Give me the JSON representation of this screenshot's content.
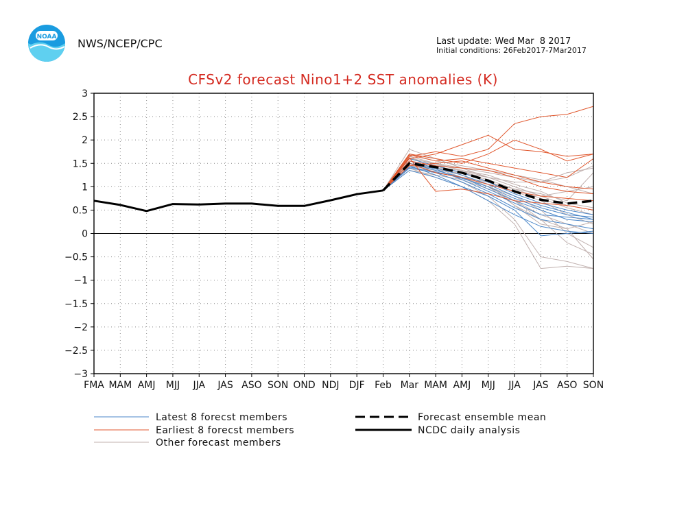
{
  "header": {
    "org": "NWS/NCEP/CPC",
    "logo_text": "NOAA",
    "last_update": "Last update: Wed Mar  8 2017",
    "initial_conditions": "Initial conditions: 26Feb2017-7Mar2017"
  },
  "colors": {
    "latest": "#4a86c8",
    "earliest": "#e0562c",
    "other": "#c0b0ae",
    "title": "#d42a20",
    "mean": "#000000",
    "analysis": "#000000"
  },
  "chart_data": {
    "type": "line",
    "title": "CFSv2 forecast Nino1+2 SST anomalies (K)",
    "xlabel": "",
    "ylabel": "",
    "categories": [
      "FMA",
      "MAM",
      "AMJ",
      "MJJ",
      "JJA",
      "JAS",
      "ASO",
      "SON",
      "OND",
      "NDJ",
      "DJF",
      "Feb",
      "Mar",
      "MAM",
      "AMJ",
      "MJJ",
      "JJA",
      "JAS",
      "ASO",
      "SON"
    ],
    "ylim": [
      -3,
      3
    ],
    "yticks": [
      3,
      2.5,
      2,
      1.5,
      1,
      0.5,
      0,
      -0.5,
      -1,
      -1.5,
      -2,
      -2.5,
      -3
    ],
    "ytick_labels": [
      "3",
      "2.5",
      "2",
      "1.5",
      "1",
      "0.5",
      "0",
      "−0.5",
      "−1",
      "−1.5",
      "−2",
      "−2.5",
      "−3"
    ],
    "grid": true,
    "analysis": {
      "name": "NCDC daily analysis",
      "x": [
        0,
        1,
        2,
        3,
        4,
        5,
        6,
        7,
        8,
        9,
        10,
        11
      ],
      "values": [
        0.7,
        0.61,
        0.48,
        0.63,
        0.62,
        0.64,
        0.64,
        0.59,
        0.59,
        0.71,
        0.84,
        0.92
      ]
    },
    "mean": {
      "name": "Forecast ensemble mean",
      "x": [
        11,
        12,
        13,
        14,
        15,
        16,
        17,
        18,
        19
      ],
      "values": [
        0.92,
        1.5,
        1.42,
        1.3,
        1.13,
        0.9,
        0.72,
        0.64,
        0.7
      ]
    },
    "members_x": [
      11,
      12,
      13,
      14,
      15,
      16,
      17,
      18,
      19
    ],
    "latest_members": [
      [
        0.92,
        1.4,
        1.3,
        1.1,
        0.85,
        0.55,
        0.3,
        0.2,
        0.1
      ],
      [
        0.92,
        1.5,
        1.35,
        1.2,
        0.95,
        0.7,
        0.5,
        0.3,
        0.25
      ],
      [
        0.92,
        1.45,
        1.25,
        1.0,
        0.7,
        0.4,
        0.15,
        0.05,
        0.0
      ],
      [
        0.92,
        1.55,
        1.4,
        1.25,
        1.05,
        0.8,
        0.6,
        0.45,
        0.3
      ],
      [
        0.92,
        1.35,
        1.2,
        1.0,
        0.8,
        0.5,
        -0.05,
        0.0,
        0.05
      ],
      [
        0.92,
        1.6,
        1.45,
        1.3,
        1.1,
        0.85,
        0.65,
        0.5,
        0.4
      ],
      [
        0.92,
        1.5,
        1.38,
        1.15,
        0.9,
        0.65,
        0.4,
        0.35,
        0.3
      ],
      [
        0.92,
        1.42,
        1.32,
        1.18,
        1.0,
        0.75,
        0.55,
        0.4,
        0.35
      ]
    ],
    "earliest_members": [
      [
        0.92,
        1.6,
        1.7,
        1.9,
        2.1,
        1.8,
        1.75,
        1.65,
        1.7
      ],
      [
        0.92,
        1.7,
        1.6,
        1.5,
        1.7,
        2.0,
        1.8,
        1.55,
        1.7
      ],
      [
        0.92,
        1.65,
        1.75,
        1.65,
        1.8,
        2.35,
        2.5,
        2.55,
        2.72
      ],
      [
        0.92,
        1.55,
        1.45,
        1.4,
        1.35,
        1.2,
        1.0,
        0.9,
        0.85
      ],
      [
        0.92,
        1.5,
        1.3,
        1.2,
        1.05,
        0.9,
        0.8,
        0.75,
        0.7
      ],
      [
        0.92,
        1.62,
        0.9,
        0.95,
        0.85,
        0.7,
        0.65,
        0.6,
        0.5
      ],
      [
        0.92,
        1.68,
        1.55,
        1.6,
        1.5,
        1.4,
        1.3,
        1.2,
        1.6
      ],
      [
        0.92,
        1.45,
        1.5,
        1.55,
        1.4,
        1.25,
        1.1,
        1.0,
        0.95
      ]
    ],
    "other_members": [
      [
        0.92,
        1.8,
        1.6,
        1.4,
        1.2,
        1.0,
        0.8,
        0.6,
        0.5
      ],
      [
        0.92,
        1.5,
        1.3,
        1.1,
        0.8,
        0.3,
        -0.5,
        -0.6,
        -0.75
      ],
      [
        0.92,
        1.4,
        1.2,
        1.0,
        0.7,
        0.2,
        -0.75,
        -0.7,
        -0.75
      ],
      [
        0.92,
        1.6,
        1.5,
        1.4,
        1.3,
        1.2,
        1.1,
        1.2,
        1.45
      ],
      [
        0.92,
        1.55,
        1.4,
        1.2,
        1.0,
        0.8,
        0.5,
        0.0,
        -0.3
      ],
      [
        0.92,
        1.45,
        1.35,
        1.3,
        1.2,
        1.1,
        1.1,
        1.3,
        1.4
      ],
      [
        0.92,
        1.5,
        1.4,
        1.25,
        1.05,
        0.6,
        0.3,
        0.1,
        -0.55
      ],
      [
        0.92,
        1.65,
        1.5,
        1.35,
        1.1,
        0.9,
        0.7,
        0.4,
        0.2
      ],
      [
        0.92,
        1.35,
        1.25,
        1.15,
        0.95,
        0.7,
        0.4,
        0.2,
        0.0
      ],
      [
        0.92,
        1.7,
        1.55,
        1.45,
        1.35,
        1.25,
        1.15,
        1.0,
        0.85
      ],
      [
        0.92,
        1.4,
        1.3,
        1.2,
        1.1,
        0.95,
        0.75,
        0.55,
        0.4
      ],
      [
        0.92,
        1.55,
        1.45,
        1.3,
        1.15,
        0.95,
        0.85,
        0.7,
        1.3
      ],
      [
        0.92,
        1.5,
        1.35,
        1.2,
        1.0,
        0.7,
        0.3,
        -0.2,
        -0.45
      ],
      [
        0.92,
        1.62,
        1.48,
        1.35,
        1.25,
        1.05,
        0.9,
        0.65,
        0.55
      ],
      [
        0.92,
        1.45,
        1.4,
        1.35,
        1.2,
        1.0,
        0.8,
        0.9,
        1.0
      ],
      [
        0.92,
        1.6,
        1.45,
        1.25,
        1.0,
        0.6,
        0.2,
        0.1,
        0.25
      ]
    ],
    "legend": {
      "latest": "Latest 8 forecst members",
      "earliest": "Earliest 8 forecst members",
      "other": "Other forecast members",
      "mean": "Forecast ensemble mean",
      "analysis": "NCDC daily analysis"
    }
  }
}
